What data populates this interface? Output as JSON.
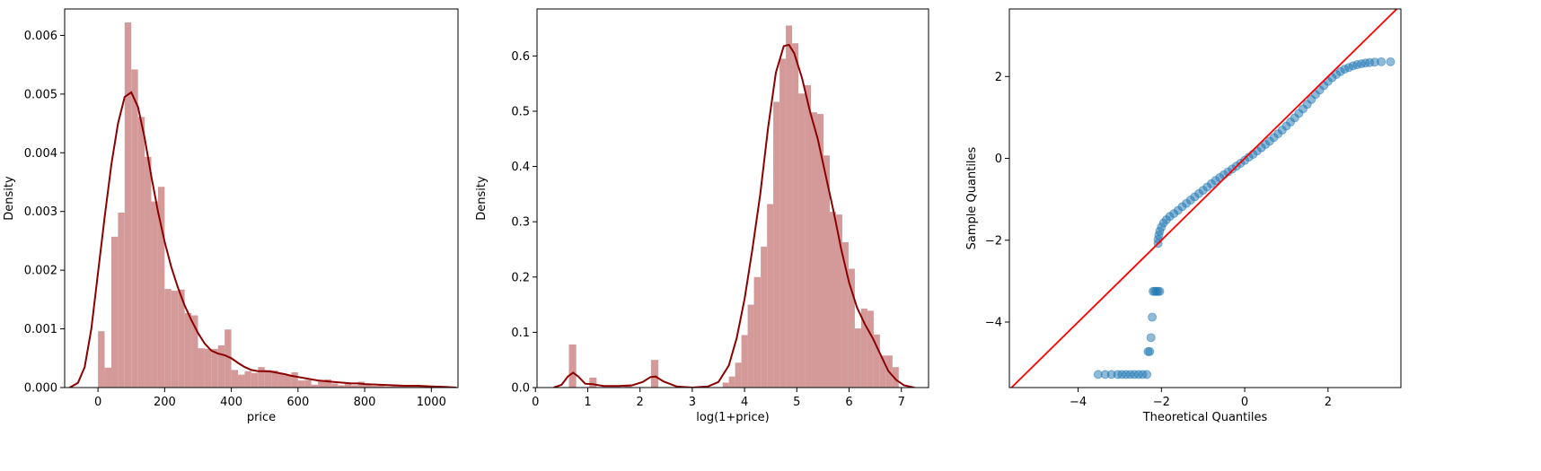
{
  "chart_data": [
    {
      "type": "histogram",
      "title": "",
      "xlabel": "price",
      "ylabel": "Density",
      "xlim": [
        -100,
        1080
      ],
      "ylim": [
        0,
        0.00645
      ],
      "xticks": [
        0,
        200,
        400,
        600,
        800,
        1000
      ],
      "xtick_labels": [
        "0",
        "200",
        "400",
        "600",
        "800",
        "1000"
      ],
      "yticks": [
        0,
        0.001,
        0.002,
        0.003,
        0.004,
        0.005,
        0.006
      ],
      "ytick_labels": [
        "0.000",
        "0.001",
        "0.002",
        "0.003",
        "0.004",
        "0.005",
        "0.006"
      ],
      "bar_color": "#d49a9a",
      "line_color": "#8b0000",
      "bins": [
        [
          0,
          20,
          0.00096
        ],
        [
          20,
          40,
          0.00034
        ],
        [
          40,
          60,
          0.00257
        ],
        [
          60,
          80,
          0.00298
        ],
        [
          80,
          100,
          0.00622
        ],
        [
          100,
          120,
          0.00542
        ],
        [
          120,
          140,
          0.00461
        ],
        [
          140,
          160,
          0.00393
        ],
        [
          160,
          180,
          0.00317
        ],
        [
          180,
          200,
          0.00342
        ],
        [
          200,
          220,
          0.00168
        ],
        [
          220,
          240,
          0.00165
        ],
        [
          240,
          260,
          0.00167
        ],
        [
          260,
          280,
          0.00127
        ],
        [
          280,
          300,
          0.00123
        ],
        [
          300,
          320,
          0.00067
        ],
        [
          320,
          340,
          0.00066
        ],
        [
          340,
          360,
          0.00066
        ],
        [
          360,
          380,
          0.00072
        ],
        [
          380,
          400,
          0.00099
        ],
        [
          400,
          420,
          0.0003
        ],
        [
          420,
          440,
          0.00022
        ],
        [
          440,
          460,
          0.00028
        ],
        [
          460,
          480,
          0.00025
        ],
        [
          480,
          500,
          0.00035
        ],
        [
          500,
          520,
          0.0003
        ],
        [
          520,
          540,
          0.00029
        ],
        [
          540,
          560,
          0.00024
        ],
        [
          560,
          580,
          0.00021
        ],
        [
          580,
          600,
          0.00026
        ],
        [
          600,
          620,
          0.00012
        ],
        [
          620,
          640,
          0.00013
        ],
        [
          640,
          660,
          5e-05
        ],
        [
          660,
          680,
          0.00012
        ],
        [
          680,
          700,
          0.00014
        ],
        [
          700,
          720,
          7e-05
        ],
        [
          720,
          740,
          4e-05
        ],
        [
          740,
          760,
          6e-05
        ],
        [
          760,
          780,
          4e-05
        ],
        [
          780,
          800,
          0.0001
        ],
        [
          800,
          820,
          5e-05
        ],
        [
          820,
          840,
          3e-05
        ],
        [
          840,
          860,
          5e-05
        ],
        [
          860,
          880,
          2e-05
        ],
        [
          880,
          900,
          4e-05
        ],
        [
          900,
          920,
          3e-05
        ],
        [
          920,
          940,
          2e-05
        ],
        [
          940,
          960,
          3e-05
        ],
        [
          960,
          980,
          2e-05
        ],
        [
          980,
          1000,
          1e-05
        ]
      ],
      "kde": [
        [
          -85,
          0.0
        ],
        [
          -60,
          8e-05
        ],
        [
          -40,
          0.00035
        ],
        [
          -20,
          0.001
        ],
        [
          0,
          0.00195
        ],
        [
          20,
          0.0029
        ],
        [
          40,
          0.0038
        ],
        [
          60,
          0.0045
        ],
        [
          80,
          0.00495
        ],
        [
          100,
          0.00503
        ],
        [
          120,
          0.00478
        ],
        [
          140,
          0.00425
        ],
        [
          160,
          0.0036
        ],
        [
          180,
          0.003
        ],
        [
          200,
          0.00248
        ],
        [
          220,
          0.00205
        ],
        [
          240,
          0.0017
        ],
        [
          260,
          0.0014
        ],
        [
          280,
          0.00115
        ],
        [
          300,
          0.00093
        ],
        [
          320,
          0.00075
        ],
        [
          340,
          0.00063
        ],
        [
          360,
          0.00058
        ],
        [
          380,
          0.00055
        ],
        [
          400,
          0.0005
        ],
        [
          420,
          0.00042
        ],
        [
          440,
          0.00035
        ],
        [
          460,
          0.0003
        ],
        [
          480,
          0.00028
        ],
        [
          500,
          0.00028
        ],
        [
          520,
          0.00027
        ],
        [
          540,
          0.00025
        ],
        [
          560,
          0.00023
        ],
        [
          580,
          0.0002
        ],
        [
          600,
          0.00018
        ],
        [
          620,
          0.00016
        ],
        [
          640,
          0.00014
        ],
        [
          660,
          0.00012
        ],
        [
          680,
          0.00011
        ],
        [
          700,
          0.0001
        ],
        [
          720,
          9e-05
        ],
        [
          740,
          8e-05
        ],
        [
          760,
          7e-05
        ],
        [
          780,
          7e-05
        ],
        [
          800,
          6e-05
        ],
        [
          840,
          5e-05
        ],
        [
          880,
          4e-05
        ],
        [
          920,
          3e-05
        ],
        [
          960,
          3e-05
        ],
        [
          1000,
          2e-05
        ],
        [
          1040,
          1e-05
        ],
        [
          1075,
          0.0
        ]
      ]
    },
    {
      "type": "histogram",
      "title": "",
      "xlabel": "log(1+price)",
      "ylabel": "Density",
      "xlim": [
        0.03,
        7.52
      ],
      "ylim": [
        0,
        0.685
      ],
      "xticks": [
        0,
        1,
        2,
        3,
        4,
        5,
        6,
        7
      ],
      "xtick_labels": [
        "0",
        "1",
        "2",
        "3",
        "4",
        "5",
        "6",
        "7"
      ],
      "yticks": [
        0,
        0.1,
        0.2,
        0.3,
        0.4,
        0.5,
        0.6
      ],
      "ytick_labels": [
        "0.0",
        "0.1",
        "0.2",
        "0.3",
        "0.4",
        "0.5",
        "0.6"
      ],
      "bar_color": "#d49a9a",
      "line_color": "#8b0000",
      "bins": [
        [
          0.64,
          0.78,
          0.078
        ],
        [
          1.03,
          1.17,
          0.018
        ],
        [
          1.7,
          1.84,
          0.005
        ],
        [
          2.21,
          2.35,
          0.05
        ],
        [
          3.58,
          3.7,
          0.009
        ],
        [
          3.7,
          3.82,
          0.02
        ],
        [
          3.82,
          3.94,
          0.045
        ],
        [
          3.94,
          4.06,
          0.095
        ],
        [
          4.06,
          4.18,
          0.15
        ],
        [
          4.18,
          4.31,
          0.2
        ],
        [
          4.31,
          4.43,
          0.255
        ],
        [
          4.43,
          4.55,
          0.332
        ],
        [
          4.55,
          4.67,
          0.517
        ],
        [
          4.67,
          4.79,
          0.595
        ],
        [
          4.79,
          4.91,
          0.655
        ],
        [
          4.91,
          5.03,
          0.623
        ],
        [
          5.03,
          5.15,
          0.532
        ],
        [
          5.15,
          5.27,
          0.547
        ],
        [
          5.27,
          5.39,
          0.498
        ],
        [
          5.39,
          5.51,
          0.495
        ],
        [
          5.51,
          5.63,
          0.42
        ],
        [
          5.63,
          5.75,
          0.318
        ],
        [
          5.75,
          5.87,
          0.313
        ],
        [
          5.87,
          5.99,
          0.263
        ],
        [
          5.99,
          6.11,
          0.215
        ],
        [
          6.11,
          6.23,
          0.107
        ],
        [
          6.23,
          6.35,
          0.143
        ],
        [
          6.35,
          6.47,
          0.139
        ],
        [
          6.47,
          6.59,
          0.096
        ],
        [
          6.59,
          6.71,
          0.058
        ],
        [
          6.71,
          6.83,
          0.058
        ],
        [
          6.83,
          6.95,
          0.037
        ]
      ],
      "kde": [
        [
          0.35,
          0.0
        ],
        [
          0.5,
          0.005
        ],
        [
          0.62,
          0.02
        ],
        [
          0.72,
          0.027
        ],
        [
          0.82,
          0.02
        ],
        [
          0.95,
          0.007
        ],
        [
          1.1,
          0.006
        ],
        [
          1.3,
          0.003
        ],
        [
          1.6,
          0.003
        ],
        [
          1.85,
          0.004
        ],
        [
          2.05,
          0.01
        ],
        [
          2.2,
          0.019
        ],
        [
          2.3,
          0.02
        ],
        [
          2.45,
          0.011
        ],
        [
          2.7,
          0.002
        ],
        [
          3.0,
          0.0
        ],
        [
          3.3,
          0.002
        ],
        [
          3.5,
          0.01
        ],
        [
          3.7,
          0.04
        ],
        [
          3.85,
          0.09
        ],
        [
          4.0,
          0.16
        ],
        [
          4.15,
          0.25
        ],
        [
          4.3,
          0.35
        ],
        [
          4.45,
          0.47
        ],
        [
          4.6,
          0.57
        ],
        [
          4.75,
          0.618
        ],
        [
          4.85,
          0.62
        ],
        [
          4.95,
          0.605
        ],
        [
          5.1,
          0.56
        ],
        [
          5.25,
          0.5
        ],
        [
          5.4,
          0.45
        ],
        [
          5.55,
          0.385
        ],
        [
          5.7,
          0.32
        ],
        [
          5.85,
          0.25
        ],
        [
          6.0,
          0.19
        ],
        [
          6.15,
          0.145
        ],
        [
          6.3,
          0.115
        ],
        [
          6.45,
          0.09
        ],
        [
          6.6,
          0.06
        ],
        [
          6.75,
          0.03
        ],
        [
          6.9,
          0.014
        ],
        [
          7.05,
          0.004
        ],
        [
          7.25,
          0.0
        ]
      ]
    },
    {
      "type": "scatter",
      "title": "",
      "xlabel": "Theoretical Quantiles",
      "ylabel": "Sample Quantiles",
      "xlim": [
        -5.65,
        3.75
      ],
      "ylim": [
        -5.6,
        3.65
      ],
      "xticks": [
        -4,
        -2,
        0,
        2
      ],
      "xtick_labels": [
        "−4",
        "−2",
        "0",
        "2"
      ],
      "yticks": [
        -4,
        -2,
        0,
        2
      ],
      "ytick_labels": [
        "−4",
        "−2",
        "0",
        "2"
      ],
      "point_color": "#1f77b4",
      "reference_line": {
        "slope": 1,
        "intercept": 0,
        "color": "#ff0000"
      },
      "points": [
        [
          -3.52,
          -5.28
        ],
        [
          -3.35,
          -5.28
        ],
        [
          -3.2,
          -5.28
        ],
        [
          -3.05,
          -5.28
        ],
        [
          -2.95,
          -5.28
        ],
        [
          -2.85,
          -5.28
        ],
        [
          -2.75,
          -5.28
        ],
        [
          -2.65,
          -5.28
        ],
        [
          -2.55,
          -5.28
        ],
        [
          -2.45,
          -5.28
        ],
        [
          -2.35,
          -5.28
        ],
        [
          -2.32,
          -4.72
        ],
        [
          -2.28,
          -4.72
        ],
        [
          -2.25,
          -4.38
        ],
        [
          -2.22,
          -3.88
        ],
        [
          -2.2,
          -3.25
        ],
        [
          -2.16,
          -3.25
        ],
        [
          -2.12,
          -3.25
        ],
        [
          -2.08,
          -3.25
        ],
        [
          -2.04,
          -3.25
        ],
        [
          -2.08,
          -2.08
        ],
        [
          -2.08,
          -1.98
        ],
        [
          -2.06,
          -1.88
        ],
        [
          -2.04,
          -1.78
        ],
        [
          -2.0,
          -1.68
        ],
        [
          -1.95,
          -1.58
        ],
        [
          -1.88,
          -1.5
        ],
        [
          -1.8,
          -1.42
        ],
        [
          -1.7,
          -1.35
        ],
        [
          -1.6,
          -1.27
        ],
        [
          -1.5,
          -1.18
        ],
        [
          -1.4,
          -1.1
        ],
        [
          -1.3,
          -1.02
        ],
        [
          -1.2,
          -0.94
        ],
        [
          -1.1,
          -0.86
        ],
        [
          -1.0,
          -0.78
        ],
        [
          -0.9,
          -0.7
        ],
        [
          -0.8,
          -0.62
        ],
        [
          -0.7,
          -0.54
        ],
        [
          -0.6,
          -0.47
        ],
        [
          -0.5,
          -0.4
        ],
        [
          -0.4,
          -0.33
        ],
        [
          -0.3,
          -0.26
        ],
        [
          -0.2,
          -0.19
        ],
        [
          -0.1,
          -0.12
        ],
        [
          0.0,
          -0.05
        ],
        [
          0.1,
          0.03
        ],
        [
          0.2,
          0.1
        ],
        [
          0.3,
          0.18
        ],
        [
          0.4,
          0.26
        ],
        [
          0.5,
          0.34
        ],
        [
          0.6,
          0.42
        ],
        [
          0.7,
          0.51
        ],
        [
          0.8,
          0.6
        ],
        [
          0.9,
          0.69
        ],
        [
          1.0,
          0.79
        ],
        [
          1.1,
          0.89
        ],
        [
          1.2,
          0.99
        ],
        [
          1.3,
          1.1
        ],
        [
          1.4,
          1.21
        ],
        [
          1.5,
          1.32
        ],
        [
          1.6,
          1.44
        ],
        [
          1.7,
          1.56
        ],
        [
          1.8,
          1.67
        ],
        [
          1.9,
          1.78
        ],
        [
          2.0,
          1.88
        ],
        [
          2.1,
          1.97
        ],
        [
          2.2,
          2.05
        ],
        [
          2.3,
          2.12
        ],
        [
          2.4,
          2.18
        ],
        [
          2.5,
          2.22
        ],
        [
          2.6,
          2.26
        ],
        [
          2.7,
          2.29
        ],
        [
          2.8,
          2.31
        ],
        [
          2.9,
          2.33
        ],
        [
          3.0,
          2.34
        ],
        [
          3.12,
          2.35
        ],
        [
          3.28,
          2.36
        ],
        [
          3.5,
          2.36
        ]
      ]
    }
  ]
}
